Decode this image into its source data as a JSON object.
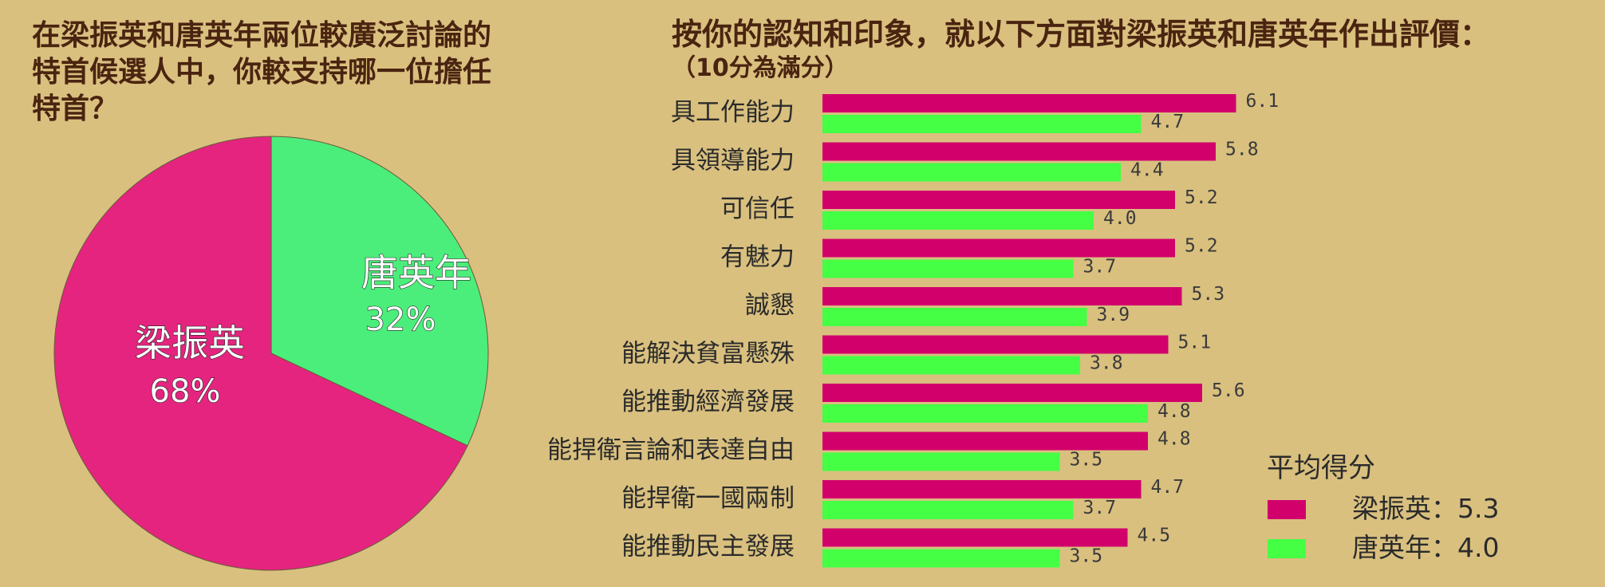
{
  "pie": {
    "question_lines": [
      "在梁振英和唐英年兩位較廣泛討論的",
      "特首候選人中，你較支持哪一位擔任",
      "特首？"
    ],
    "slices": [
      {
        "label": "唐英年",
        "pct_label": "32%",
        "value": 32,
        "color": "#4bee7a"
      },
      {
        "label": "梁振英",
        "pct_label": "68%",
        "value": 68,
        "color": "#e5247f"
      }
    ]
  },
  "bars": {
    "title": "按你的認知和印象，就以下方面對梁振英和唐英年作出評價：",
    "subtitle": "（10分為滿分）",
    "legend": {
      "title": "平均得分",
      "entries": [
        {
          "text": "梁振英：5.3",
          "color": "#d1006b"
        },
        {
          "text": "唐英年：4.0",
          "color": "#44ff44"
        }
      ]
    }
  },
  "chart_data": [
    {
      "type": "pie",
      "title": "在梁振英和唐英年兩位較廣泛討論的特首候選人中，你較支持哪一位擔任特首？",
      "labels": [
        "唐英年",
        "梁振英"
      ],
      "values": [
        32,
        68
      ],
      "colors": [
        "#4bee7a",
        "#e5247f"
      ]
    },
    {
      "type": "bar",
      "orientation": "horizontal",
      "title": "按你的認知和印象，就以下方面對梁振英和唐英年作出評價：",
      "subtitle": "（10分為滿分）",
      "categories": [
        "具工作能力",
        "具領導能力",
        "可信任",
        "有魅力",
        "誠懇",
        "能解決貧富懸殊",
        "能推動經濟發展",
        "能捍衛言論和表達自由",
        "能捍衛一國兩制",
        "能推動民主發展"
      ],
      "series": [
        {
          "name": "梁振英",
          "values": [
            6.1,
            5.8,
            5.2,
            5.2,
            5.3,
            5.1,
            5.6,
            4.8,
            4.7,
            4.5
          ],
          "labels": [
            "6.1",
            "5.8",
            "5.2",
            "5.2",
            "5.3",
            "5.1",
            "5.6",
            "4.8",
            "4.7",
            "4.5"
          ],
          "color": "#d1006b"
        },
        {
          "name": "唐英年",
          "values": [
            4.7,
            4.4,
            4.0,
            3.7,
            3.9,
            3.8,
            4.8,
            3.5,
            3.7,
            3.5
          ],
          "labels": [
            "4.7",
            "4.4",
            "4.0",
            "3.7",
            "3.9",
            "3.8",
            "4.8",
            "3.5",
            "3.7",
            "3.5"
          ],
          "color": "#44ff44"
        }
      ],
      "xlim": [
        0,
        10
      ],
      "grid": false,
      "axes_visible": false
    }
  ]
}
